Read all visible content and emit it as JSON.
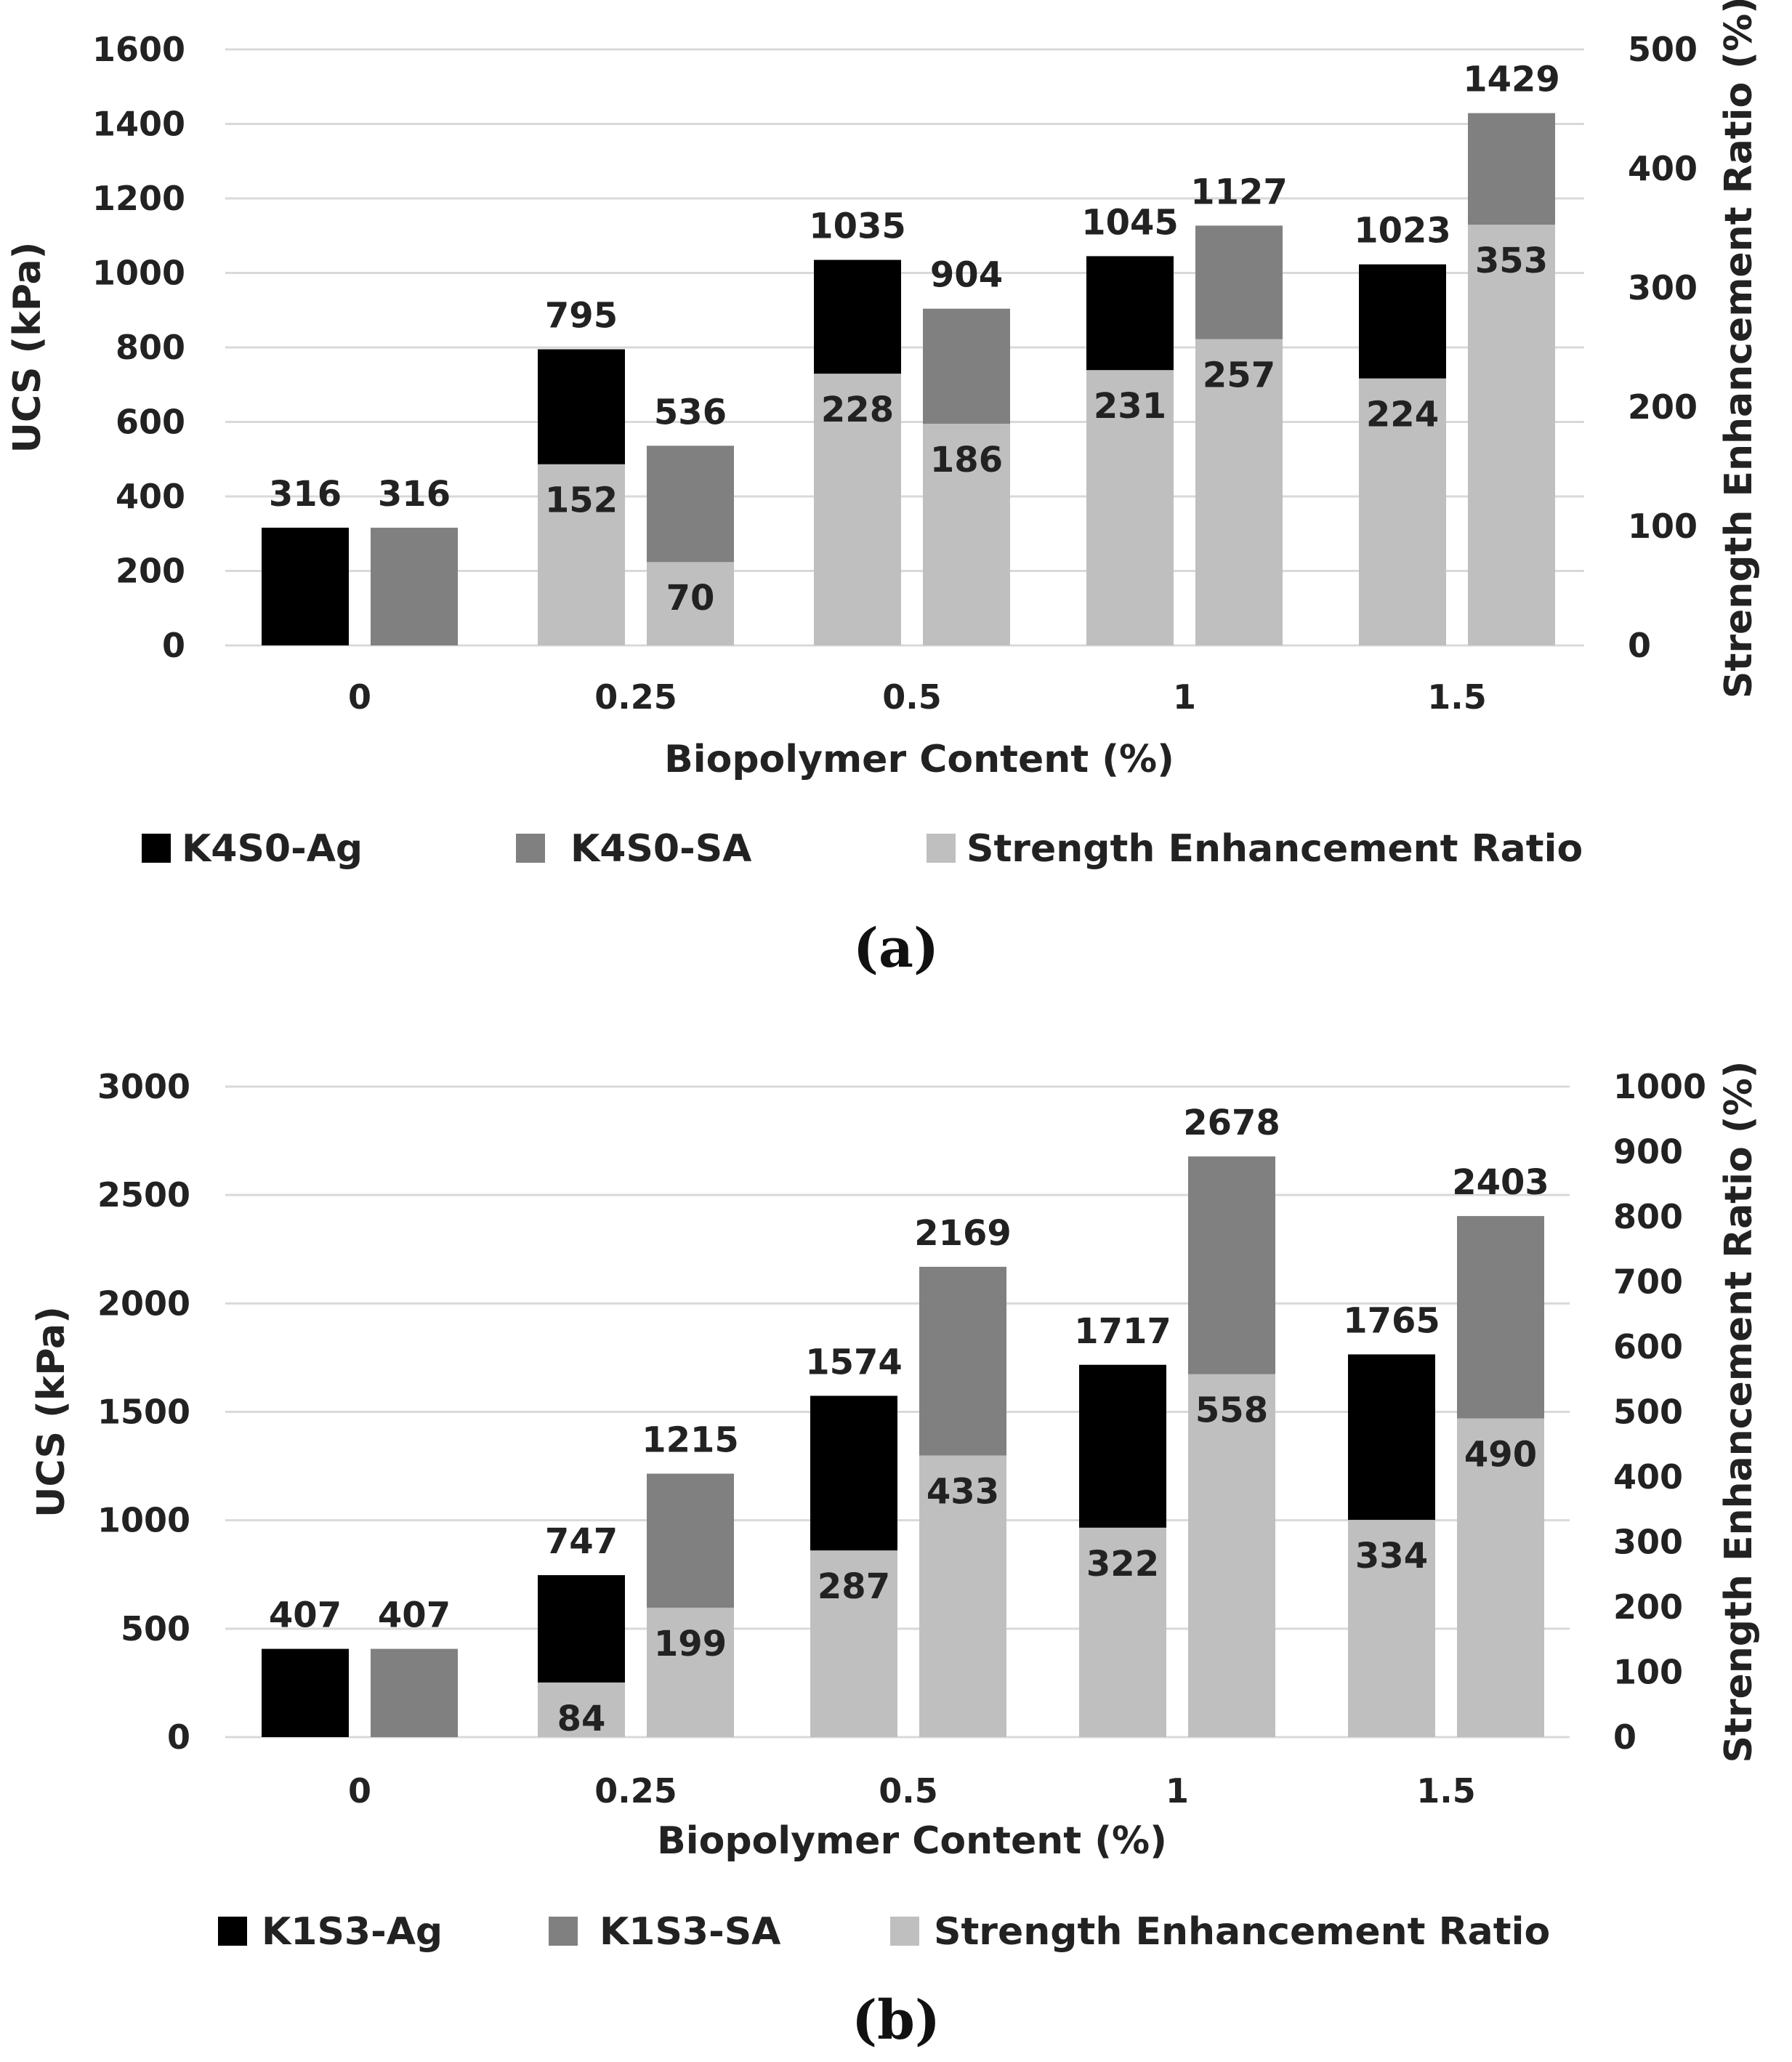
{
  "chart_data": [
    {
      "type": "bar",
      "caption": "(a)",
      "xlabel": "Biopolymer Content (%)",
      "ylabel": "UCS (kPa)",
      "y2label": "Strength Enhancement Ratio (%)",
      "ylim": [
        0,
        1600
      ],
      "y2lim": [
        0,
        500
      ],
      "yticks": [
        "0",
        "200",
        "400",
        "600",
        "800",
        "1000",
        "1200",
        "1400",
        "1600"
      ],
      "y2ticks": [
        "0",
        "100",
        "200",
        "300",
        "400",
        "500"
      ],
      "categories": [
        "0",
        "0.25",
        "0.5",
        "1",
        "1.5"
      ],
      "series": [
        {
          "name": "K4S0-Ag",
          "values": [
            316,
            795,
            1035,
            1045,
            1023
          ],
          "labels": [
            "316",
            "795",
            "1035",
            "1045",
            "1023"
          ],
          "color": "#000000"
        },
        {
          "name": "K4S0-SA",
          "values": [
            316,
            536,
            904,
            1127,
            1429
          ],
          "labels": [
            "316",
            "536",
            "904",
            "1127",
            "1429"
          ],
          "color": "#808080"
        }
      ],
      "ratio": {
        "name": "Strength Enhancement Ratio",
        "color": "#bfbfbf",
        "values": [
          [
            null,
            null
          ],
          [
            152,
            70
          ],
          [
            228,
            186
          ],
          [
            231,
            257
          ],
          [
            224,
            353
          ]
        ],
        "labels": [
          [
            "",
            ""
          ],
          [
            "152",
            "70"
          ],
          [
            "228",
            "186"
          ],
          [
            "231",
            "257"
          ],
          [
            "224",
            "353"
          ]
        ]
      },
      "legend": [
        "K4S0-Ag",
        "K4S0-SA",
        "Strength Enhancement Ratio"
      ]
    },
    {
      "type": "bar",
      "caption": "(b)",
      "xlabel": "Biopolymer Content (%)",
      "ylabel": "UCS (kPa)",
      "y2label": "Strength Enhancement Ratio (%)",
      "ylim": [
        0,
        3000
      ],
      "y2lim": [
        0,
        1000
      ],
      "yticks": [
        "0",
        "500",
        "1000",
        "1500",
        "2000",
        "2500",
        "3000"
      ],
      "y2ticks": [
        "0",
        "100",
        "200",
        "300",
        "400",
        "500",
        "600",
        "700",
        "800",
        "900",
        "1000"
      ],
      "categories": [
        "0",
        "0.25",
        "0.5",
        "1",
        "1.5"
      ],
      "series": [
        {
          "name": "K1S3-Ag",
          "values": [
            407,
            747,
            1574,
            1717,
            1765
          ],
          "labels": [
            "407",
            "747",
            "1574",
            "1717",
            "1765"
          ],
          "color": "#000000"
        },
        {
          "name": "K1S3-SA",
          "values": [
            407,
            1215,
            2169,
            2678,
            2403
          ],
          "labels": [
            "407",
            "1215",
            "2169",
            "2678",
            "2403"
          ],
          "color": "#808080"
        }
      ],
      "ratio": {
        "name": "Strength Enhancement Ratio",
        "color": "#bfbfbf",
        "values": [
          [
            null,
            null
          ],
          [
            84,
            199
          ],
          [
            287,
            433
          ],
          [
            322,
            558
          ],
          [
            334,
            490
          ]
        ],
        "labels": [
          [
            "",
            ""
          ],
          [
            "84",
            "199"
          ],
          [
            "287",
            "433"
          ],
          [
            "322",
            "558"
          ],
          [
            "334",
            "490"
          ]
        ]
      },
      "legend": [
        "K1S3-Ag",
        "K1S3-SA",
        "Strength Enhancement Ratio"
      ]
    }
  ]
}
